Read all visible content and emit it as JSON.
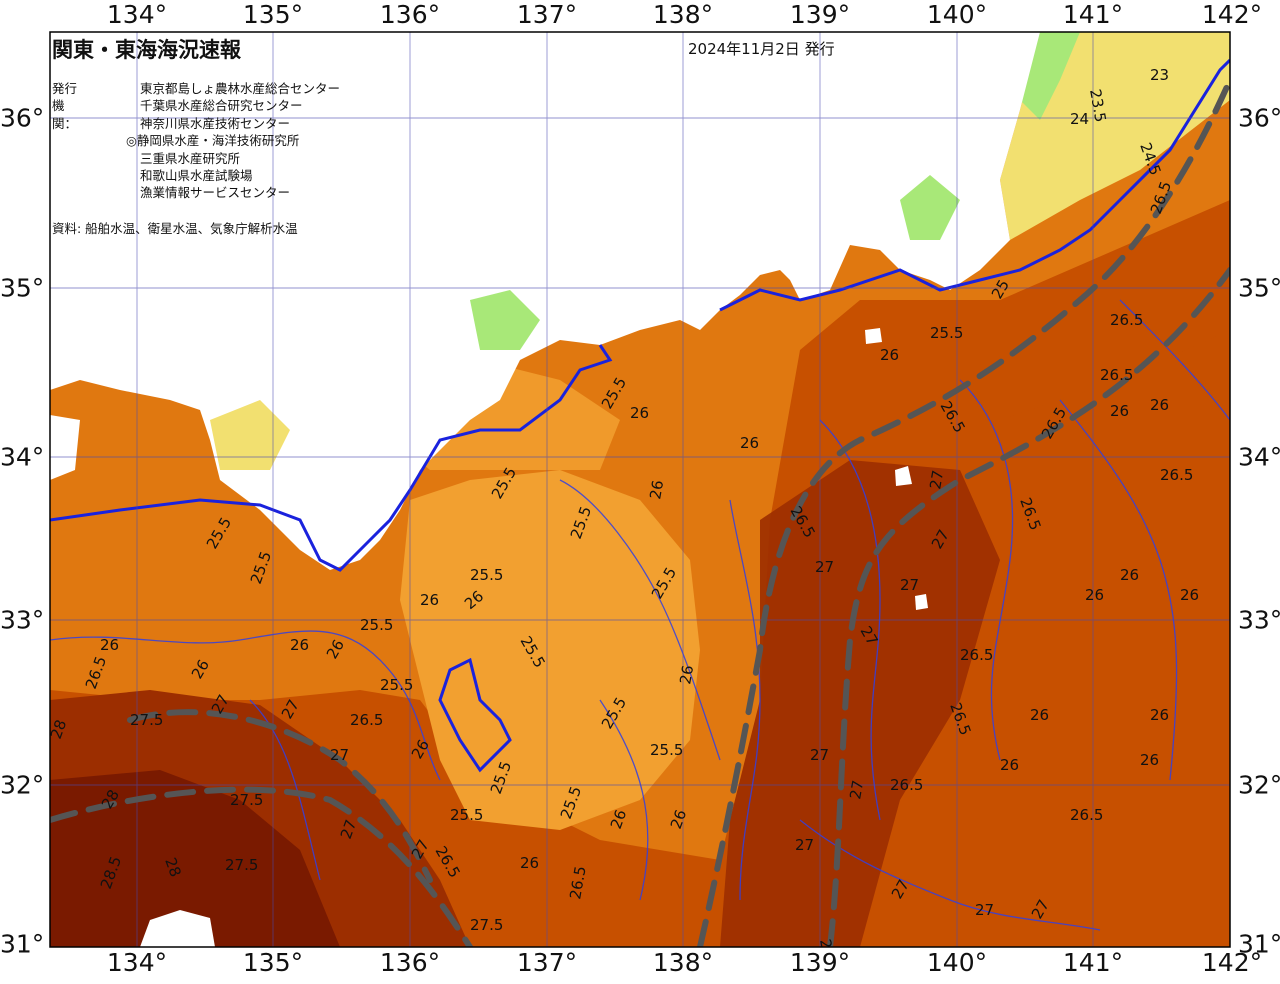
{
  "title": "関東・東海海況速報",
  "issue_date": "2024年11月2日 発行",
  "agencies_label": "発行機関：",
  "agencies": [
    "東京都島しょ農林水産総合センター",
    "千葉県水産総合研究センター",
    "神奈川県水産技術センター",
    "◎静岡県水産・海洋技術研究所",
    "三重県水産研究所",
    "和歌山県水産試験場",
    "漁業情報サービスセンター"
  ],
  "source": "資料: 船舶水温、衛星水温、気象庁解析水温",
  "axes": {
    "longitude_labels": [
      "134°",
      "135°",
      "136°",
      "137°",
      "138°",
      "139°",
      "140°",
      "141°",
      "142°"
    ],
    "latitude_labels": [
      "36°",
      "35°",
      "34°",
      "33°",
      "32°",
      "31°"
    ]
  },
  "contour_labels": [
    "23",
    "23.5",
    "24",
    "24.5",
    "25",
    "25.5",
    "26",
    "26.5",
    "27",
    "27.5",
    "28",
    "28.5"
  ],
  "colors": {
    "sea_warm": "#c75000",
    "sea_mid": "#e07810",
    "sea_light": "#f2a030",
    "sea_hot": "#9c2e00",
    "sea_hottest": "#7a1a00",
    "land": "#ffffff",
    "shelf_green": "#a8e878",
    "cold_yellow": "#f2e070",
    "contour_blue": "#1a22dd",
    "kuroshio_axis": "#555555",
    "grid": "#4a4ab0"
  }
}
